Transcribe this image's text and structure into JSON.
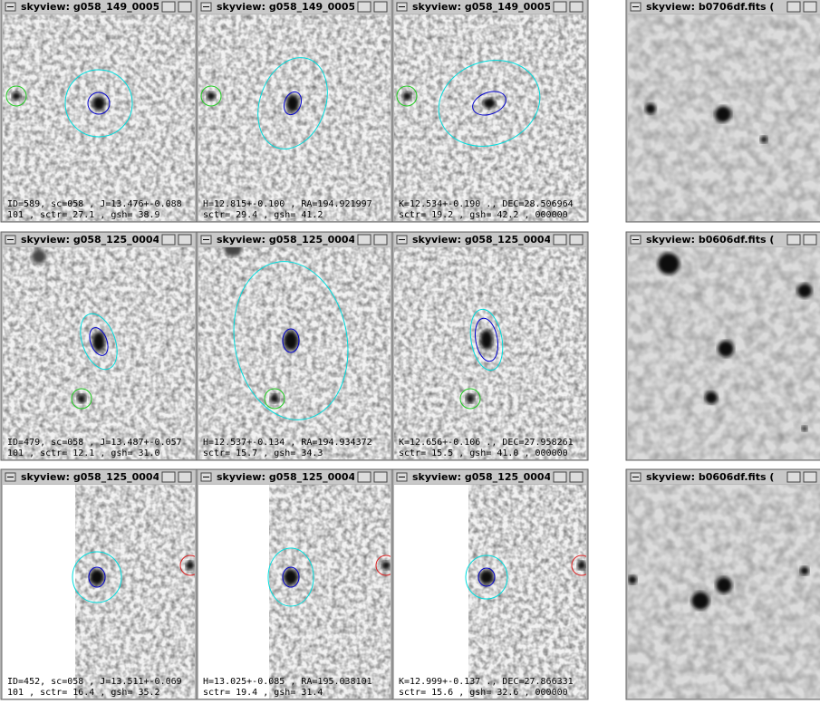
{
  "windows": [
    {
      "title": "skyview: g058_149_0005",
      "caption": [
        "ID=589, sc=058 , J=13.476+-0.088",
        "101 , sctr= 27.1 , gsh= 38.9"
      ]
    },
    {
      "title": "skyview: g058_149_0005",
      "caption": [
        "H=12.815+-0.100 , RA=194.921997",
        "sctr= 29.4 , gsh= 41.2"
      ]
    },
    {
      "title": "skyview: g058_149_0005",
      "caption": [
        "K=12.534+-0.190 ., DEC=28.506964",
        "sctr= 19.2 , gsh= 42.2 , 000000"
      ]
    },
    {
      "title": "skyview: b0706df.fits  (",
      "caption": []
    },
    {
      "title": "skyview: g058_125_0004",
      "caption": [
        "ID=479, sc=058 , J=13.487+-0.057",
        "101 , sctr= 12.1 , gsh= 31.0"
      ]
    },
    {
      "title": "skyview: g058_125_0004",
      "caption": [
        "H=12.537+-0.134 , RA=194.934372",
        "sctr= 15.7 , gsh= 34.3"
      ]
    },
    {
      "title": "skyview: g058_125_0004",
      "caption": [
        "K=12.656+-0.106 ., DEC=27.958261",
        "sctr= 15.5 , gsh= 41.0 , 000000"
      ]
    },
    {
      "title": "skyview: b0606df.fits  (",
      "caption": []
    },
    {
      "title": "skyview: g058_125_0004",
      "caption": [
        "ID=452, sc=058 , J=13.511+-0.069",
        "101 , sctr= 16.4 , gsh= 35.2"
      ]
    },
    {
      "title": "skyview: g058_125_0004",
      "caption": [
        "H=13.025+-0.085 , RA=195.038101",
        "sctr= 19.4 , gsh= 31.4"
      ]
    },
    {
      "title": "skyview: g058_125_0004",
      "caption": [
        "K=12.999+-0.137 ., DEC=27.866331",
        "sctr= 15.6 , gsh= 32.6 , 000000"
      ]
    },
    {
      "title": "skyview: b0606df.fits  (",
      "caption": []
    }
  ]
}
